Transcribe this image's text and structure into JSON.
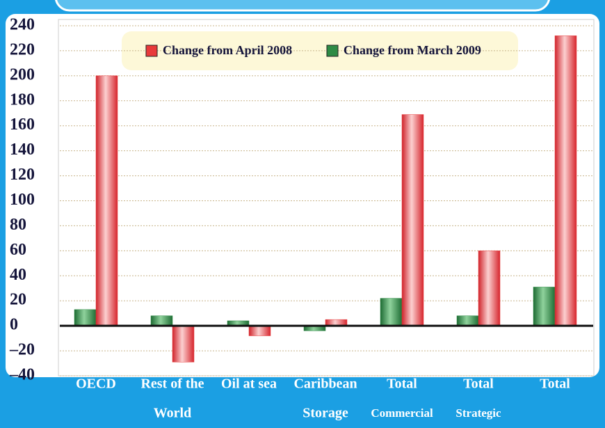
{
  "chart_data": {
    "type": "bar",
    "categories": [
      [
        "OECD"
      ],
      [
        "Rest of the",
        "World"
      ],
      [
        "Oil at sea"
      ],
      [
        "Caribbean",
        "Storage"
      ],
      [
        "Total",
        "Commercial"
      ],
      [
        "Total",
        "Strategic"
      ],
      [
        "Total"
      ]
    ],
    "series": [
      {
        "name": "Change from March 2009",
        "color": "#2e8b45",
        "values": [
          13,
          8,
          4,
          -4,
          22,
          8,
          31
        ]
      },
      {
        "name": "Change from April  2008",
        "color": "#e83a3a",
        "values": [
          200,
          -29,
          -8,
          5,
          169,
          60,
          232
        ]
      }
    ],
    "ylim": [
      -40,
      240
    ],
    "yticks": [
      {
        "value": -40,
        "label": "–40"
      },
      {
        "value": -20,
        "label": "–20"
      },
      0,
      20,
      40,
      60,
      80,
      100,
      120,
      140,
      160,
      180,
      200,
      220,
      240
    ],
    "grid": true,
    "legend": "top"
  }
}
